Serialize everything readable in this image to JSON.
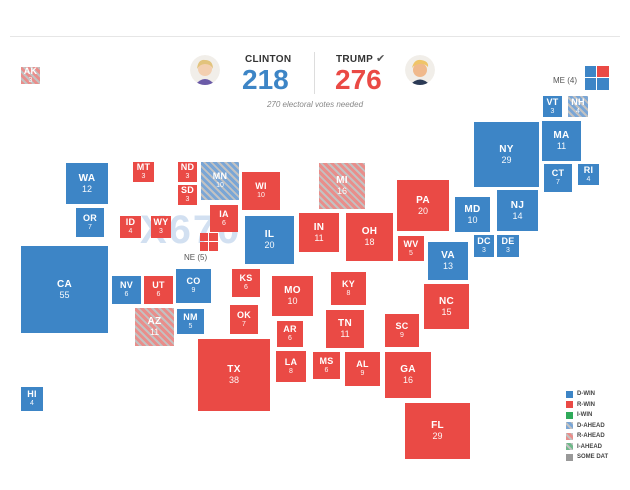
{
  "header": {
    "clinton": {
      "name": "CLINTON",
      "votes": "218"
    },
    "trump": {
      "name": "TRUMP",
      "votes": "276"
    },
    "needed": "270 electoral votes needed"
  },
  "colors": {
    "dem": "#3d85c6",
    "rep": "#ea4a45",
    "grey": "#c2c2c2"
  },
  "watermark": "X670",
  "labels": {
    "maine": "ME (4)",
    "nebraska": "NE (5)"
  },
  "states": {
    "AK": {
      "ab": "AK",
      "ev": "3"
    },
    "VT": {
      "ab": "VT",
      "ev": "3"
    },
    "NH": {
      "ab": "NH",
      "ev": "4"
    },
    "MA": {
      "ab": "MA",
      "ev": "11"
    },
    "NY": {
      "ab": "NY",
      "ev": "29"
    },
    "CT": {
      "ab": "CT",
      "ev": "7"
    },
    "RI": {
      "ab": "RI",
      "ev": "4"
    },
    "WA": {
      "ab": "WA",
      "ev": "12"
    },
    "MT": {
      "ab": "MT",
      "ev": "3"
    },
    "ND": {
      "ab": "ND",
      "ev": "3"
    },
    "SD": {
      "ab": "SD",
      "ev": "3"
    },
    "MN": {
      "ab": "MN",
      "ev": "10"
    },
    "WI": {
      "ab": "WI",
      "ev": "10"
    },
    "MI": {
      "ab": "MI",
      "ev": "16"
    },
    "PA": {
      "ab": "PA",
      "ev": "20"
    },
    "NJ": {
      "ab": "NJ",
      "ev": "14"
    },
    "MD": {
      "ab": "MD",
      "ev": "10"
    },
    "DC": {
      "ab": "DC",
      "ev": "3"
    },
    "DE": {
      "ab": "DE",
      "ev": "3"
    },
    "OR": {
      "ab": "OR",
      "ev": "7"
    },
    "ID": {
      "ab": "ID",
      "ev": "4"
    },
    "WY": {
      "ab": "WY",
      "ev": "3"
    },
    "IA": {
      "ab": "IA",
      "ev": "6"
    },
    "IL": {
      "ab": "IL",
      "ev": "20"
    },
    "IN": {
      "ab": "IN",
      "ev": "11"
    },
    "OH": {
      "ab": "OH",
      "ev": "18"
    },
    "WV": {
      "ab": "WV",
      "ev": "5"
    },
    "VA": {
      "ab": "VA",
      "ev": "13"
    },
    "CA": {
      "ab": "CA",
      "ev": "55"
    },
    "NV": {
      "ab": "NV",
      "ev": "6"
    },
    "UT": {
      "ab": "UT",
      "ev": "6"
    },
    "CO": {
      "ab": "CO",
      "ev": "9"
    },
    "KS": {
      "ab": "KS",
      "ev": "6"
    },
    "MO": {
      "ab": "MO",
      "ev": "10"
    },
    "KY": {
      "ab": "KY",
      "ev": "8"
    },
    "NC": {
      "ab": "NC",
      "ev": "15"
    },
    "AZ": {
      "ab": "AZ",
      "ev": "11"
    },
    "NM": {
      "ab": "NM",
      "ev": "5"
    },
    "OK": {
      "ab": "OK",
      "ev": "7"
    },
    "AR": {
      "ab": "AR",
      "ev": "6"
    },
    "TN": {
      "ab": "TN",
      "ev": "11"
    },
    "SC": {
      "ab": "SC",
      "ev": "9"
    },
    "TX": {
      "ab": "TX",
      "ev": "38"
    },
    "LA": {
      "ab": "LA",
      "ev": "8"
    },
    "MS": {
      "ab": "MS",
      "ev": "6"
    },
    "AL": {
      "ab": "AL",
      "ev": "9"
    },
    "GA": {
      "ab": "GA",
      "ev": "16"
    },
    "FL": {
      "ab": "FL",
      "ev": "29"
    },
    "HI": {
      "ab": "HI",
      "ev": "4"
    }
  },
  "legend": {
    "dwin": "D-WIN",
    "rwin": "R-WIN",
    "iwin": "I-WIN",
    "dahead": "D-AHEAD",
    "rahead": "R-AHEAD",
    "iahead": "I-AHEAD",
    "somedat": "SOME DAT"
  }
}
